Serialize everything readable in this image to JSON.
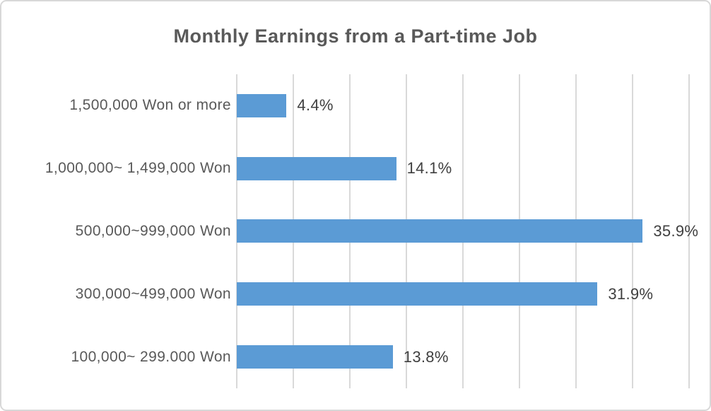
{
  "chart_data": {
    "type": "bar",
    "orientation": "horizontal",
    "title": "Monthly Earnings from a Part-time Job",
    "categories": [
      "1,500,000 Won or more",
      "1,000,000~ 1,499,000 Won",
      "500,000~999,000 Won",
      "300,000~499,000 Won",
      "100,000~ 299.000 Won"
    ],
    "values": [
      4.4,
      14.1,
      35.9,
      31.9,
      13.8
    ],
    "value_labels": [
      "4.4%",
      "14.1%",
      "35.9%",
      "31.9%",
      "13.8%"
    ],
    "xlabel": "",
    "ylabel": "",
    "xlim": [
      0,
      40
    ],
    "gridline_step": 5,
    "grid": "vertical-only",
    "legend": "none",
    "axis_tick_labels_visible": false,
    "colors": {
      "bar": "#5b9bd5",
      "gridline": "#d9d9d9",
      "frame_border": "#d8d8d8",
      "title_text": "#595959",
      "category_text": "#595959",
      "value_text": "#404040",
      "background": "#ffffff"
    }
  }
}
